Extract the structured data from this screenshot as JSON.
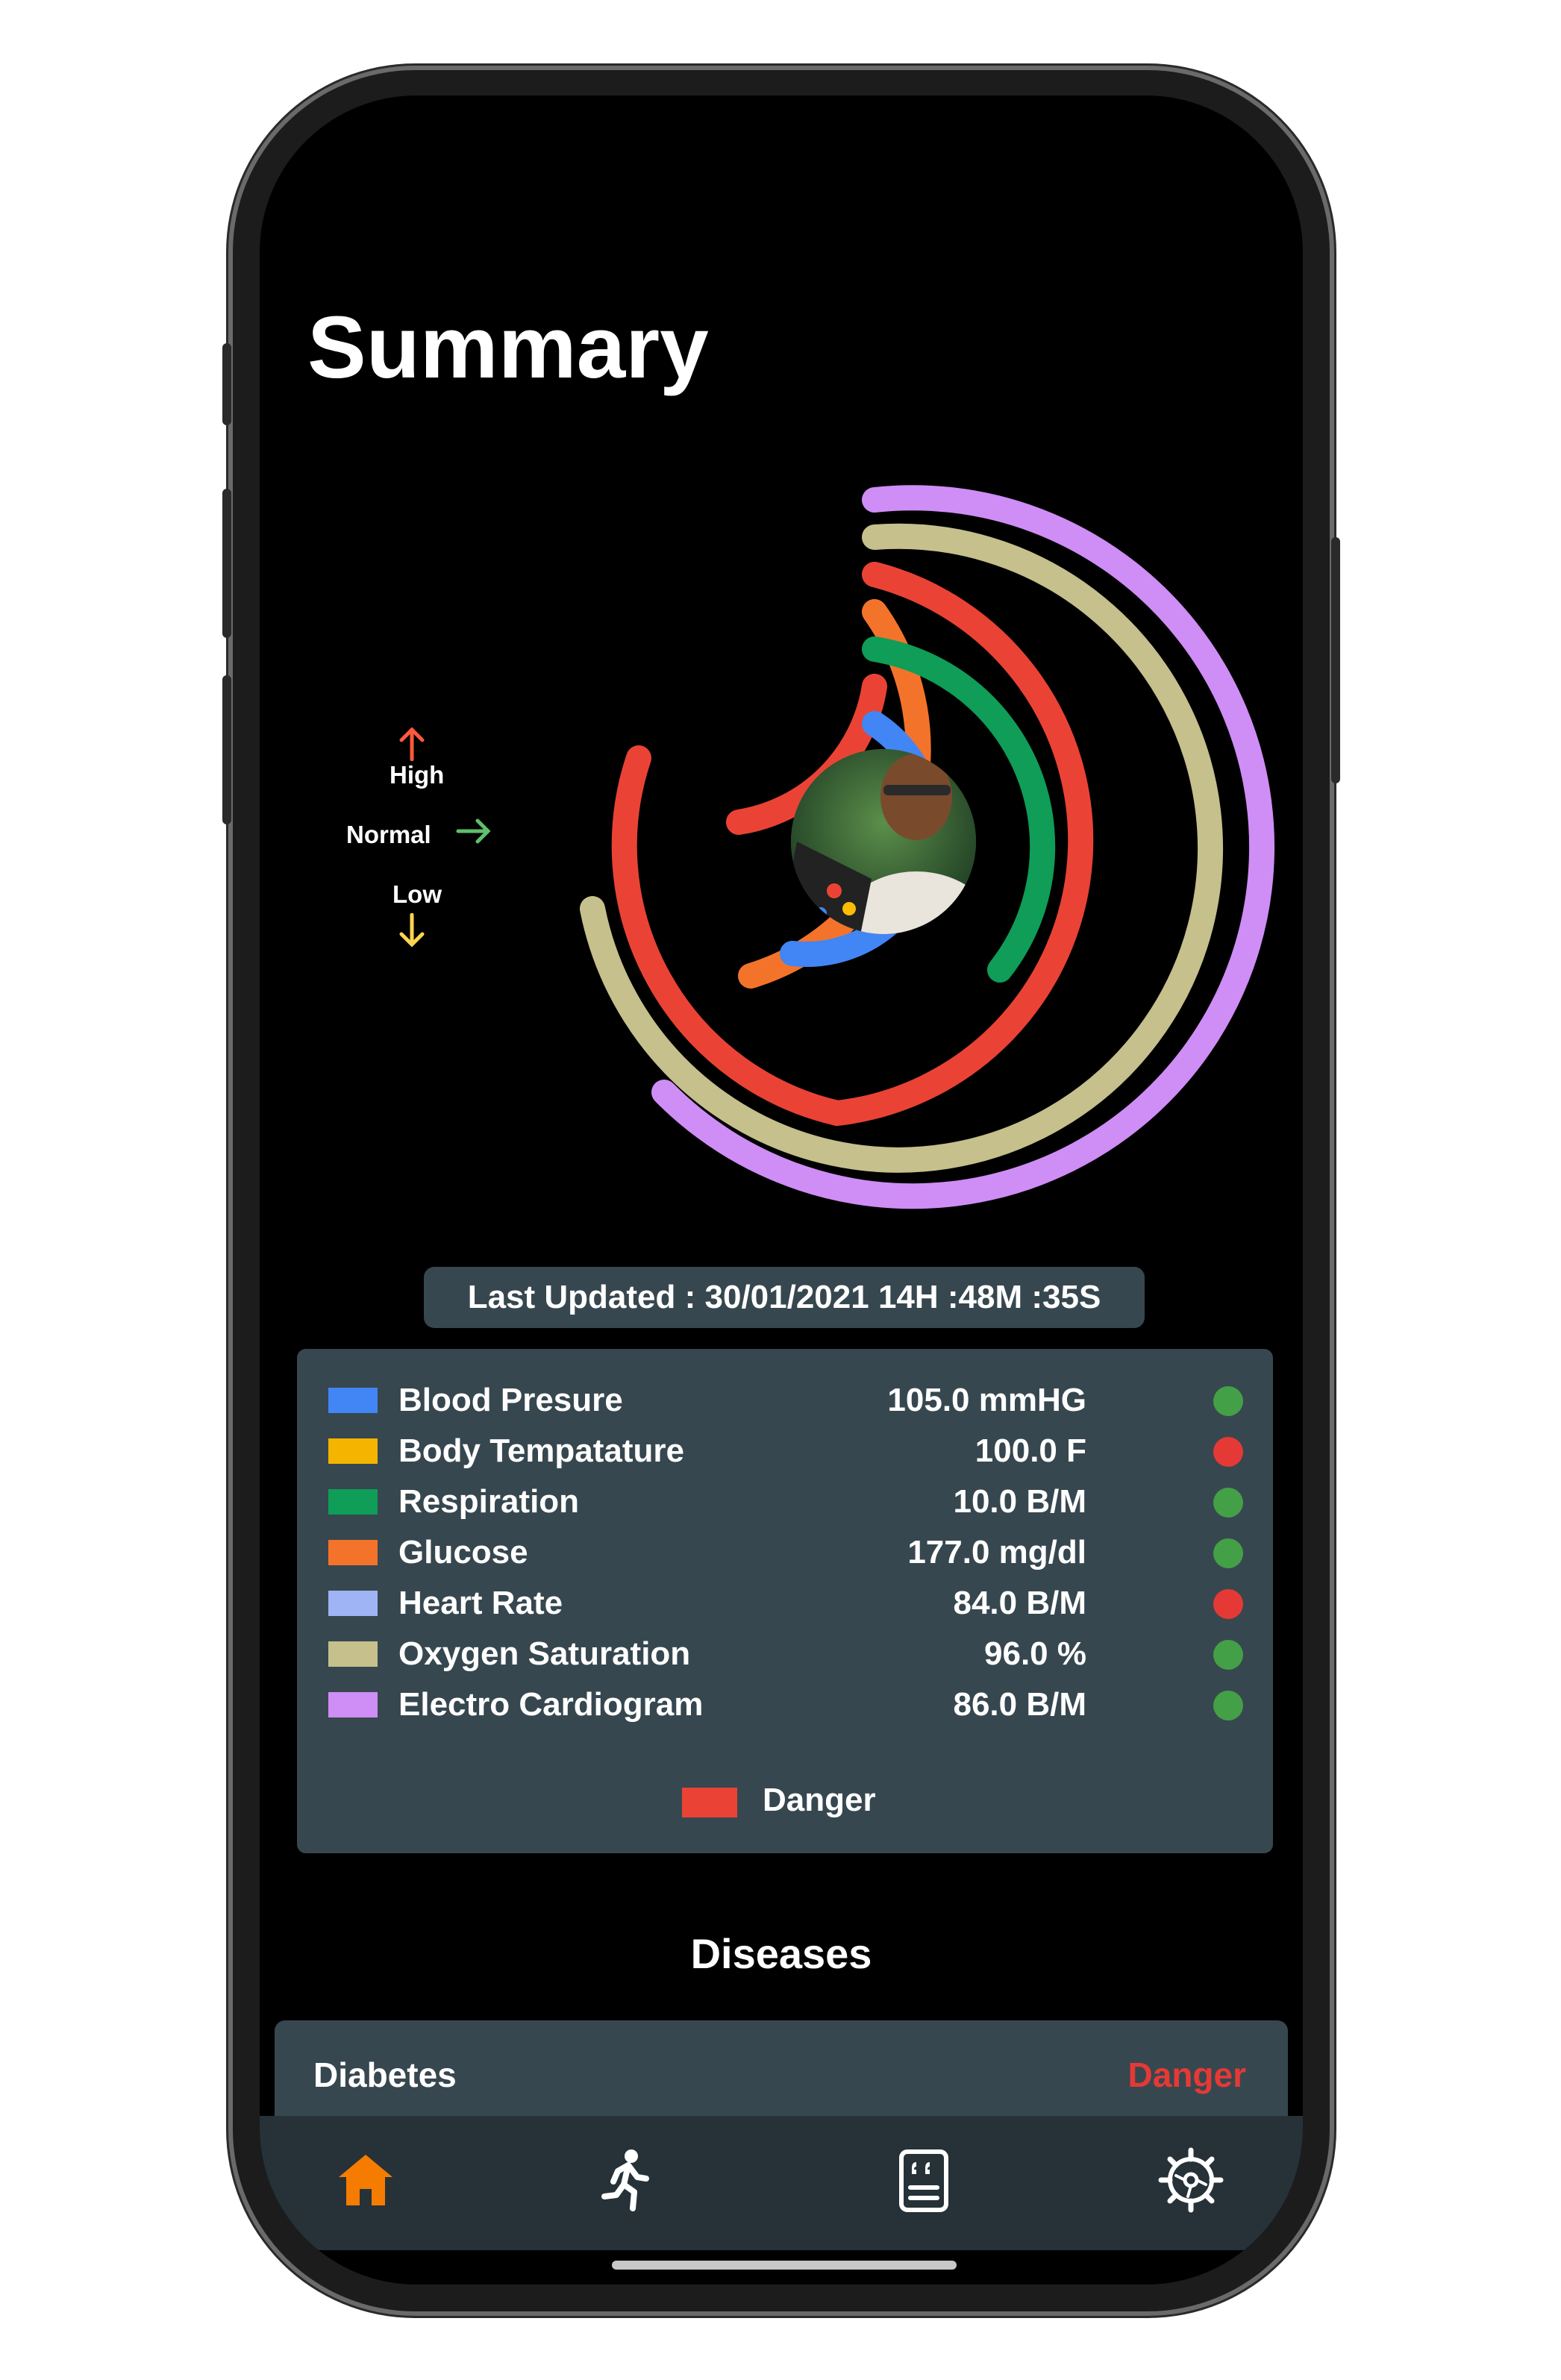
{
  "header": {
    "title": "Summary"
  },
  "legend": {
    "high": "High",
    "normal": "Normal",
    "low": "Low"
  },
  "last_updated": "Last Updated : 30/01/2021 14H :48M :35S",
  "vitals": [
    {
      "name": "Blood Presure",
      "value": "105.0 mmHG",
      "color": "#4285f4",
      "status_color": "#43a047"
    },
    {
      "name": "Body Tempatature",
      "value": "100.0 F",
      "color": "#f4b400",
      "status_color": "#e53935"
    },
    {
      "name": "Respiration",
      "value": "10.0 B/M",
      "color": "#0f9d58",
      "status_color": "#43a047"
    },
    {
      "name": "Glucose",
      "value": "177.0 mg/dl",
      "color": "#f4732a",
      "status_color": "#43a047"
    },
    {
      "name": "Heart Rate",
      "value": "84.0 B/M",
      "color": "#9fb4f4",
      "status_color": "#e53935"
    },
    {
      "name": "Oxygen Saturation",
      "value": "96.0 %",
      "color": "#c5c08c",
      "status_color": "#43a047"
    },
    {
      "name": "Electro Cardiogram",
      "value": "86.0 B/M",
      "color": "#cf8df6",
      "status_color": "#43a047"
    }
  ],
  "danger_legend": {
    "label": "Danger",
    "color": "#ea4335"
  },
  "diseases": {
    "title": "Diseases",
    "items": [
      {
        "name": "Diabetes",
        "status": "Danger"
      }
    ]
  },
  "nav": {
    "items": [
      {
        "icon": "home-icon",
        "active": true
      },
      {
        "icon": "running-icon",
        "active": false
      },
      {
        "icon": "report-icon",
        "active": false
      },
      {
        "icon": "settings-icon",
        "active": false
      }
    ]
  },
  "colors": {
    "accent": "#f57c00",
    "panel": "#37474f",
    "danger": "#ea4335",
    "ok": "#43a047"
  }
}
